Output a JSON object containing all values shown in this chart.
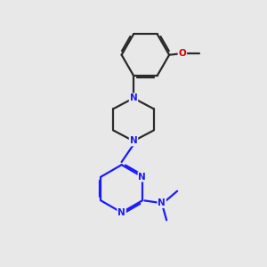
{
  "background_color": "#e8e8e8",
  "bond_color_dark": "#2a2a2a",
  "bond_color_blue": "#1a1aff",
  "atom_N_color": "#1a1aff",
  "atom_O_color": "#cc0000",
  "line_width": 1.6,
  "figsize": [
    3.0,
    3.0
  ],
  "dpi": 100,
  "xlim": [
    0,
    10
  ],
  "ylim": [
    0,
    11
  ]
}
